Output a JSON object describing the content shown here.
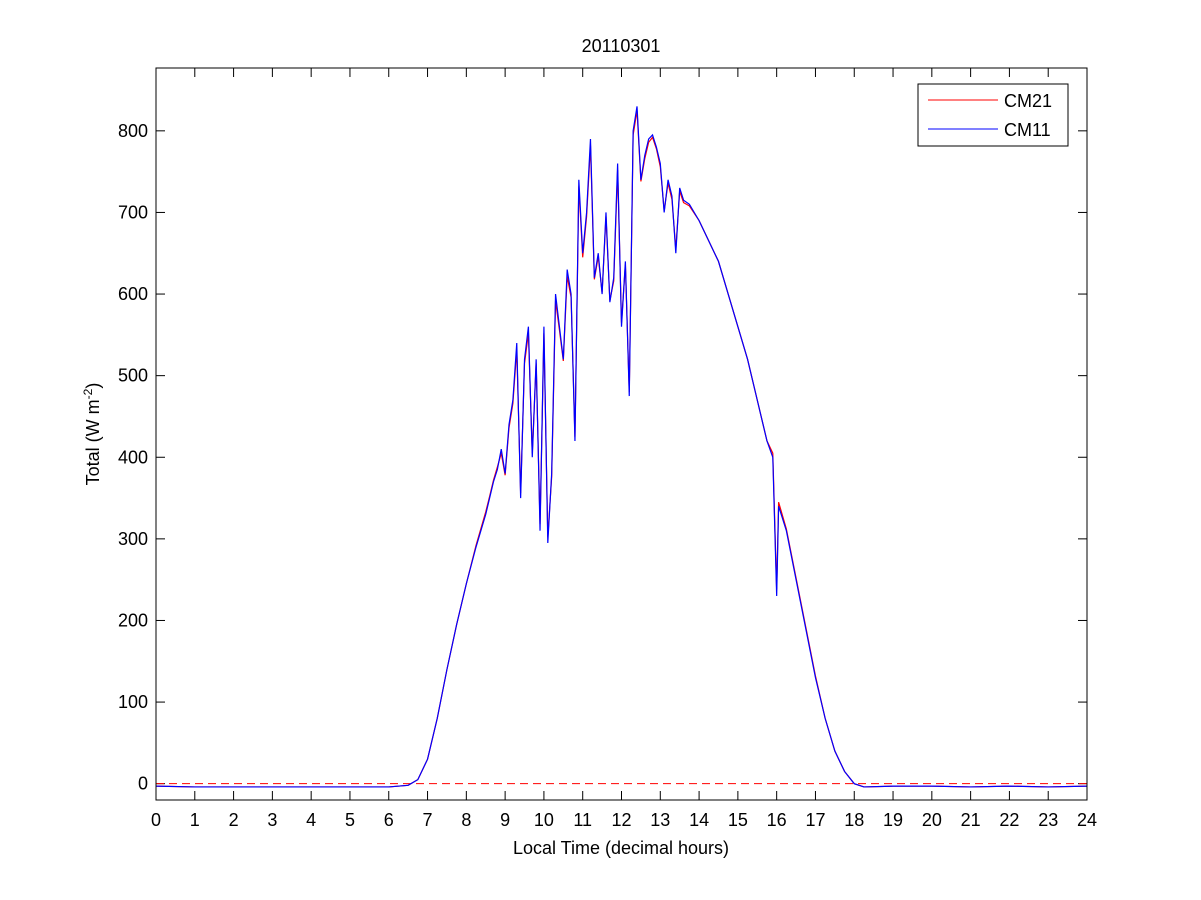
{
  "chart_data": {
    "type": "line",
    "title": "20110301",
    "xlabel": "Local Time (decimal hours)",
    "ylabel": "Total (W m",
    "ylabel_sup": "-2",
    "ylabel_end": ")",
    "x": [
      0,
      1,
      2,
      3,
      4,
      5,
      6,
      6.5,
      6.75,
      7,
      7.25,
      7.5,
      7.75,
      8,
      8.25,
      8.5,
      8.6,
      8.7,
      8.8,
      8.9,
      9.0,
      9.1,
      9.2,
      9.3,
      9.4,
      9.5,
      9.6,
      9.7,
      9.8,
      9.9,
      10.0,
      10.1,
      10.2,
      10.3,
      10.4,
      10.5,
      10.6,
      10.7,
      10.8,
      10.9,
      11.0,
      11.1,
      11.2,
      11.3,
      11.4,
      11.5,
      11.6,
      11.7,
      11.8,
      11.9,
      12.0,
      12.1,
      12.2,
      12.3,
      12.4,
      12.5,
      12.6,
      12.7,
      12.8,
      12.9,
      13.0,
      13.1,
      13.2,
      13.3,
      13.4,
      13.5,
      13.6,
      13.75,
      14,
      14.25,
      14.5,
      14.75,
      15,
      15.25,
      15.5,
      15.75,
      15.9,
      16,
      16.05,
      16.25,
      16.5,
      16.75,
      17,
      17.25,
      17.5,
      17.75,
      18,
      18.25,
      19,
      20,
      21,
      22,
      23,
      24
    ],
    "series": [
      {
        "name": "CM21",
        "color": "#ff0000",
        "values": [
          -3,
          -4,
          -4,
          -4,
          -4,
          -4,
          -4,
          -2,
          5,
          30,
          80,
          140,
          195,
          245,
          292,
          333,
          352,
          372,
          388,
          405,
          378,
          436,
          466,
          532,
          356,
          515,
          552,
          405,
          515,
          318,
          552,
          302,
          376,
          592,
          556,
          518,
          622,
          596,
          425,
          732,
          645,
          695,
          782,
          618,
          646,
          602,
          695,
          592,
          616,
          752,
          565,
          636,
          480,
          795,
          825,
          738,
          766,
          786,
          792,
          778,
          756,
          702,
          736,
          716,
          655,
          726,
          712,
          708,
          690,
          665,
          640,
          600,
          560,
          520,
          470,
          420,
          405,
          238,
          345,
          312,
          252,
          192,
          132,
          80,
          40,
          15,
          0,
          -4,
          -3,
          -3,
          -4,
          -3,
          -4,
          -3
        ]
      },
      {
        "name": "CM11",
        "color": "#0000ff",
        "values": [
          -3,
          -4,
          -4,
          -4,
          -4,
          -4,
          -4,
          -2,
          5,
          30,
          80,
          140,
          195,
          245,
          290,
          330,
          350,
          370,
          385,
          410,
          380,
          440,
          470,
          540,
          350,
          520,
          560,
          400,
          520,
          310,
          560,
          295,
          380,
          600,
          560,
          520,
          630,
          600,
          420,
          740,
          650,
          700,
          790,
          620,
          650,
          600,
          700,
          590,
          620,
          760,
          560,
          640,
          475,
          800,
          830,
          740,
          770,
          790,
          795,
          780,
          760,
          700,
          740,
          720,
          650,
          730,
          715,
          710,
          690,
          665,
          640,
          600,
          560,
          520,
          470,
          420,
          400,
          230,
          340,
          310,
          250,
          190,
          130,
          80,
          40,
          15,
          0,
          -4,
          -3,
          -3,
          -4,
          -3,
          -4,
          -3
        ]
      }
    ],
    "xlim": [
      0,
      24
    ],
    "xticks": [
      0,
      1,
      2,
      3,
      4,
      5,
      6,
      7,
      8,
      9,
      10,
      11,
      12,
      13,
      14,
      15,
      16,
      17,
      18,
      19,
      20,
      21,
      22,
      23,
      24
    ],
    "ylim": [
      -20,
      877
    ],
    "yticks": [
      0,
      100,
      200,
      300,
      400,
      500,
      600,
      700,
      800
    ],
    "hline": 0,
    "hline_color": "#ff0000",
    "legend": "upper-right",
    "grid": false
  }
}
